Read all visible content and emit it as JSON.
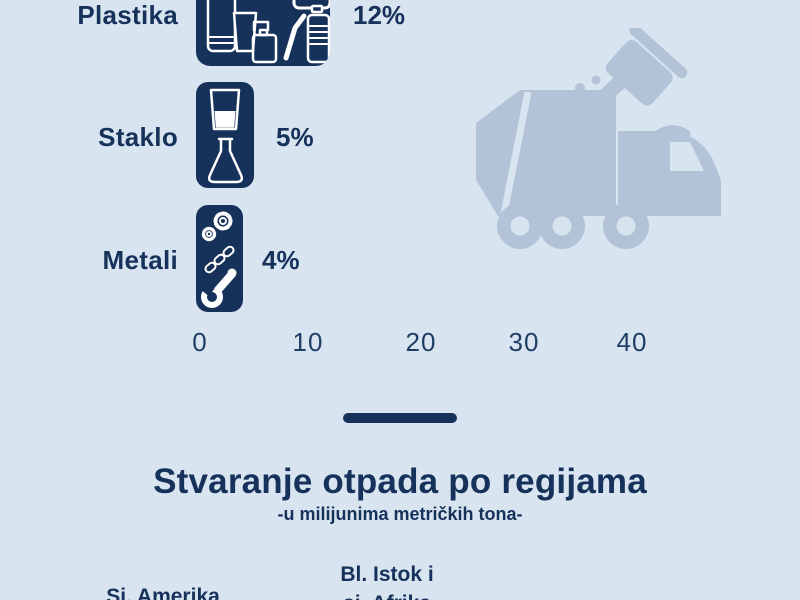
{
  "page": {
    "colors": {
      "background": "#d8e4f0",
      "navy": "#16315a",
      "tick": "#1f3e66",
      "illustration": "#b2c3d8",
      "icon_stroke": "#ffffff"
    }
  },
  "chart_data": {
    "type": "bar",
    "orientation": "horizontal",
    "categories": [
      "Plastika",
      "Staklo",
      "Metali"
    ],
    "values": [
      12,
      5,
      4
    ],
    "value_labels": [
      "12%",
      "5%",
      "4%"
    ],
    "x_ticks": [
      "0",
      "10",
      "20",
      "30",
      "40"
    ],
    "xlim": [
      0,
      40
    ],
    "grid": false,
    "legend": false,
    "bar_icons": [
      "plastic-waste-items",
      "glass-waste-items",
      "metal-waste-items"
    ]
  },
  "section_regions": {
    "title": "Stvaranje otpada po regijama",
    "subtitle": "-u milijunima metričkih tona-",
    "regions": [
      {
        "line1": "Sj. Amerika",
        "line2": ""
      },
      {
        "line1": "Bl. Istok i",
        "line2": "sj. Afrika"
      }
    ]
  }
}
